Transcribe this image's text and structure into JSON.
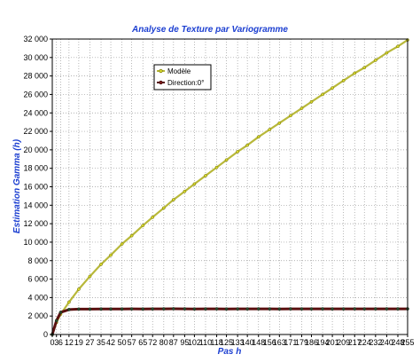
{
  "chart_data": {
    "type": "line",
    "title": "Analyse de Texture par Variogramme",
    "xlabel": "Pas h",
    "ylabel": "Estimation Gamma (h)",
    "xlim": [
      0,
      255
    ],
    "ylim": [
      0,
      32000
    ],
    "grid": true,
    "legend_position": "top-left",
    "x_ticks": [
      "0",
      "3",
      "6",
      "12",
      "19",
      "27",
      "35",
      "42",
      "50",
      "57",
      "65",
      "72",
      "80",
      "87",
      "95",
      "102",
      "110",
      "118",
      "125",
      "133",
      "140",
      "148",
      "156",
      "163",
      "171",
      "179",
      "186",
      "194",
      "201",
      "209",
      "217",
      "224",
      "232",
      "240",
      "248",
      "255"
    ],
    "y_ticks": [
      "0",
      "2 000",
      "4 000",
      "6 000",
      "8 000",
      "10 000",
      "12 000",
      "14 000",
      "16 000",
      "18 000",
      "20 000",
      "22 000",
      "24 000",
      "26 000",
      "28 000",
      "30 000",
      "32 000"
    ],
    "x": [
      0,
      3,
      6,
      12,
      19,
      27,
      35,
      42,
      50,
      57,
      65,
      72,
      80,
      87,
      95,
      102,
      110,
      118,
      125,
      133,
      140,
      148,
      156,
      163,
      171,
      179,
      186,
      194,
      201,
      209,
      217,
      224,
      232,
      240,
      248,
      255
    ],
    "series": [
      {
        "name": "Modèle",
        "color": "#b8b83a",
        "values": [
          0,
          1300,
          2200,
          3500,
          4900,
          6300,
          7600,
          8600,
          9800,
          10700,
          11800,
          12700,
          13700,
          14600,
          15500,
          16300,
          17200,
          18100,
          18900,
          19800,
          20500,
          21400,
          22200,
          22900,
          23700,
          24500,
          25200,
          26000,
          26700,
          27500,
          28300,
          28900,
          29700,
          30500,
          31200,
          31900
        ]
      },
      {
        "name": "Direction:0°",
        "color": "#5a0f0f",
        "values": [
          0,
          1500,
          2400,
          2700,
          2750,
          2750,
          2760,
          2760,
          2760,
          2770,
          2760,
          2770,
          2780,
          2790,
          2780,
          2760,
          2770,
          2780,
          2760,
          2770,
          2770,
          2780,
          2770,
          2760,
          2780,
          2770,
          2770,
          2780,
          2770,
          2770,
          2780,
          2770,
          2780,
          2780,
          2780,
          2780
        ]
      }
    ]
  }
}
